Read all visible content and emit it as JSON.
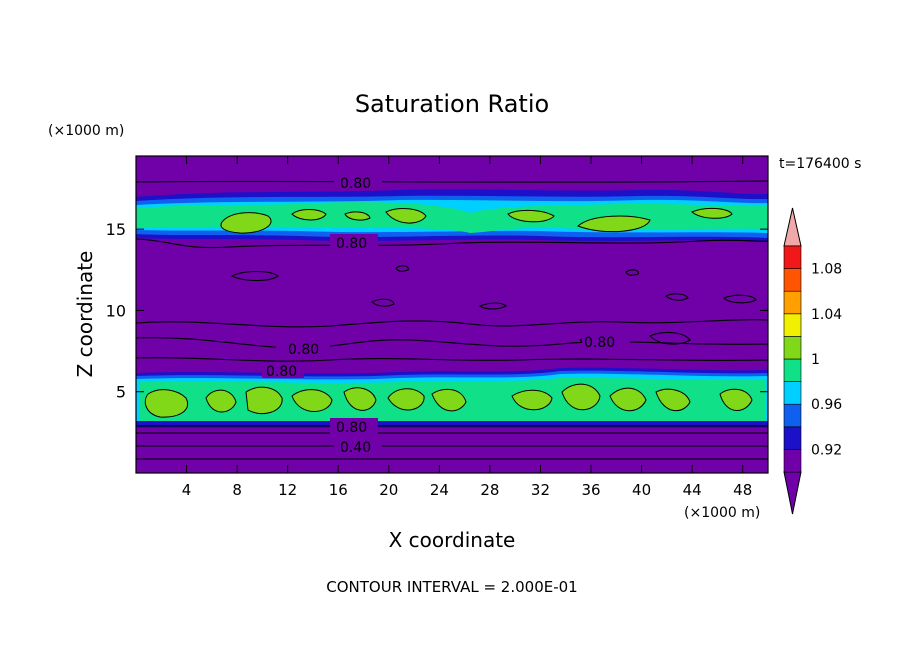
{
  "chart_data": {
    "type": "heatmap",
    "title": "Saturation Ratio",
    "xlabel": "X coordinate",
    "ylabel": "Z coordinate",
    "x_unit": "(×1000 m)",
    "y_unit": "(×1000 m)",
    "time_label": "t=176400 s",
    "footer": "CONTOUR INTERVAL = 2.000E-01",
    "xlim": [
      0,
      50
    ],
    "ylim": [
      0,
      19.5
    ],
    "x_ticks": [
      "4",
      "8",
      "12",
      "16",
      "20",
      "24",
      "28",
      "32",
      "36",
      "40",
      "44",
      "48"
    ],
    "y_ticks": [
      "5",
      "10",
      "15"
    ],
    "colorbar": {
      "levels": [
        {
          "min": 0.9,
          "max": 0.92,
          "color": "#7000a8"
        },
        {
          "min": 0.92,
          "max": 0.94,
          "color": "#1c10c8"
        },
        {
          "min": 0.94,
          "max": 0.96,
          "color": "#1060f0"
        },
        {
          "min": 0.96,
          "max": 0.98,
          "color": "#00d0ff"
        },
        {
          "min": 0.98,
          "max": 1.0,
          "color": "#10e088"
        },
        {
          "min": 1.0,
          "max": 1.02,
          "color": "#80d818"
        },
        {
          "min": 1.02,
          "max": 1.04,
          "color": "#f0f000"
        },
        {
          "min": 1.04,
          "max": 1.06,
          "color": "#ffa000"
        },
        {
          "min": 1.06,
          "max": 1.08,
          "color": "#ff5500"
        },
        {
          "min": 1.08,
          "max": 1.1,
          "color": "#f01818"
        }
      ],
      "under_color": "#7000a8",
      "over_color": "#f0a8a8",
      "tick_labels": [
        "0.92",
        "0.96",
        "1",
        "1.04",
        "1.08"
      ]
    },
    "contour_labels": [
      "0.80",
      "0.80",
      "0.80",
      "0.80",
      "0.80",
      "0.80",
      "0.80",
      "0.40"
    ],
    "field_layers": [
      {
        "z_range": [
          0.0,
          3.2
        ],
        "value": "< 0.90",
        "color": "#7000a8"
      },
      {
        "z_range": [
          3.2,
          6.2
        ],
        "value": "0.96 – 1.02",
        "color": "#10e088"
      },
      {
        "z_range": [
          6.2,
          14.3
        ],
        "value": "< 0.90",
        "color": "#7000a8"
      },
      {
        "z_range": [
          14.3,
          17.3
        ],
        "value": "0.96 – 1.02",
        "color": "#10e088"
      },
      {
        "z_range": [
          17.3,
          19.5
        ],
        "value": "< 0.90",
        "color": "#7000a8"
      }
    ],
    "contour_lines_z": [
      1.6,
      2.3,
      2.7,
      3.2,
      7.0,
      8.3,
      9.4,
      14.0,
      18.2
    ]
  }
}
